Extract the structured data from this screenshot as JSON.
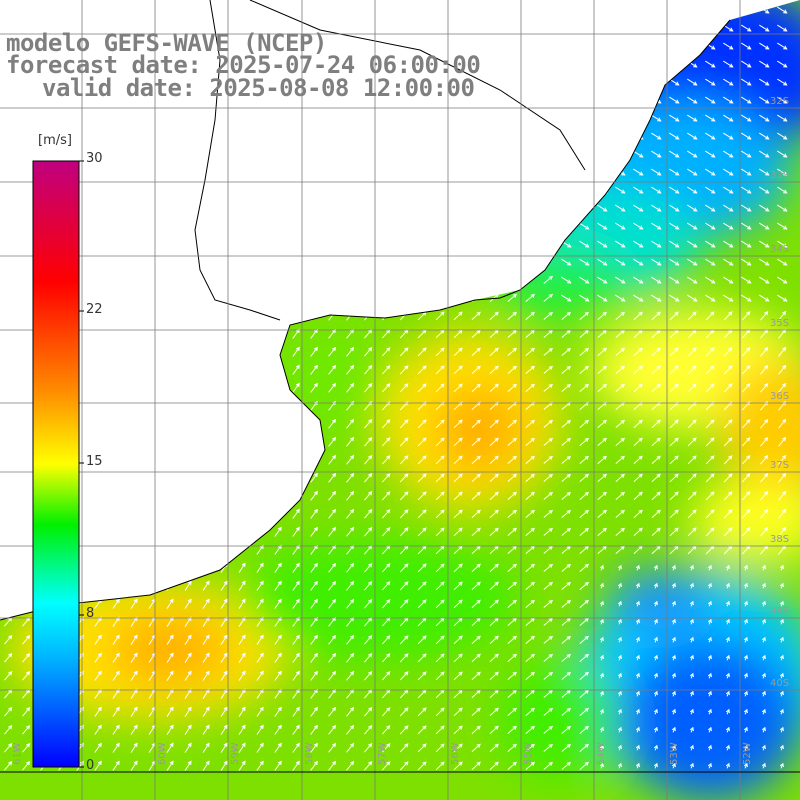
{
  "title": {
    "line1": "modelo GEFS-WAVE (NCEP)",
    "line2": "forecast date: 2025-07-24 06:00:00",
    "line3": "valid date: 2025-08-08 12:00:00"
  },
  "colorbar": {
    "unit": "[m/s]",
    "min": 0,
    "max": 30,
    "ticks": [
      "30",
      "22",
      "15",
      "8",
      "0"
    ],
    "tick_values": [
      30,
      22,
      15,
      8,
      0
    ],
    "colors": [
      "#0000ff",
      "#00e0ff",
      "#00ee00",
      "#ffff00",
      "#ff8000",
      "#ff0000",
      "#c0007f"
    ]
  },
  "map": {
    "parameter": "wind speed and direction",
    "lat_labels": [
      "32S",
      "33S",
      "34S",
      "35S",
      "36S",
      "37S",
      "38S",
      "39S",
      "40S"
    ],
    "lon_labels": [
      "61W",
      "60W",
      "59W",
      "58W",
      "57W",
      "56W",
      "55W",
      "54W",
      "53W",
      "52W"
    ],
    "features": [
      "coastline",
      "Rio de la Plata",
      "Uruguay",
      "Argentina"
    ]
  }
}
